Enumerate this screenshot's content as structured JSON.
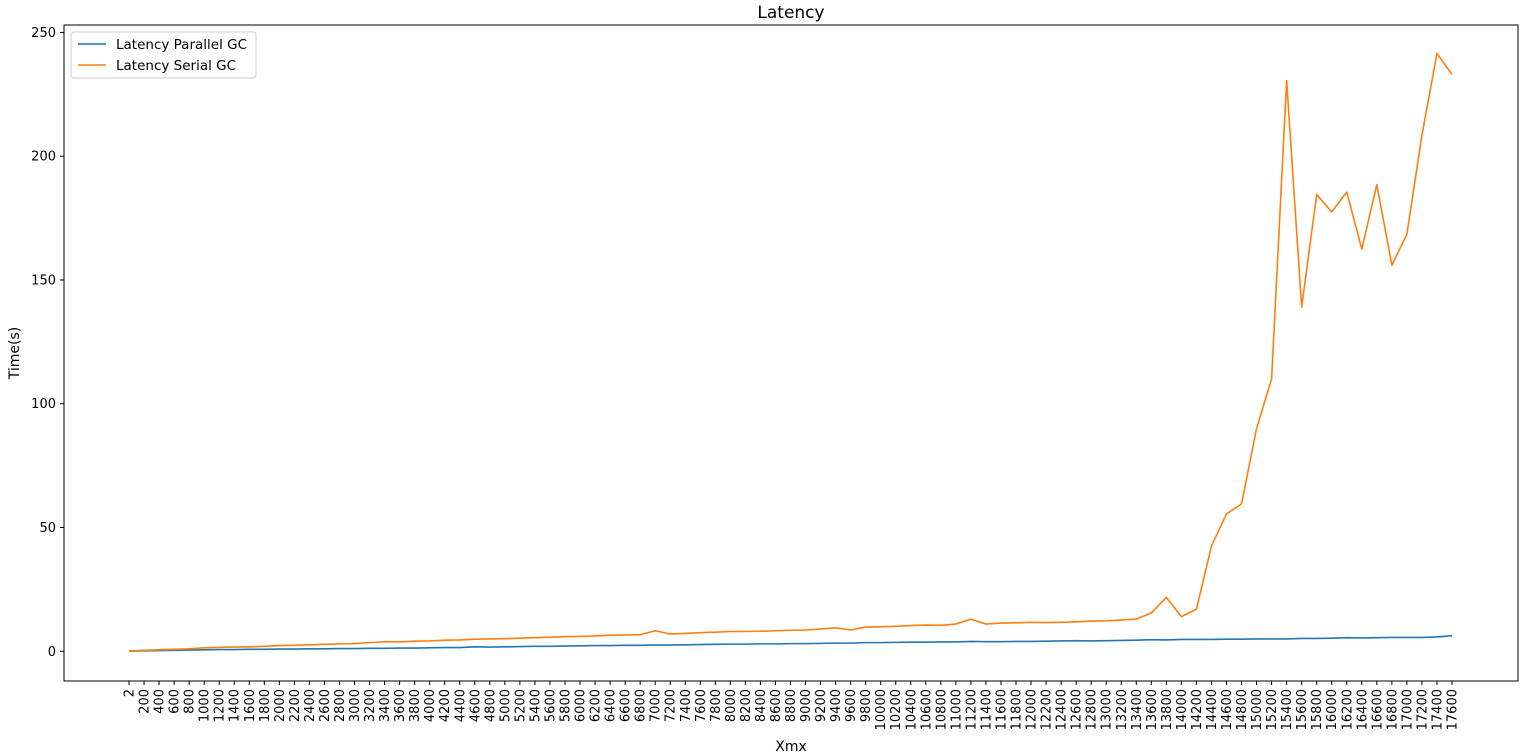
{
  "chart_data": {
    "type": "line",
    "title": "Latency",
    "xlabel": "Xmx",
    "ylabel": "Time(s)",
    "categories": [
      "2",
      "200",
      "400",
      "600",
      "800",
      "1000",
      "1200",
      "1400",
      "1600",
      "1800",
      "2000",
      "2200",
      "2400",
      "2600",
      "2800",
      "3000",
      "3200",
      "3400",
      "3600",
      "3800",
      "4000",
      "4200",
      "4400",
      "4600",
      "4800",
      "5000",
      "5200",
      "5400",
      "5600",
      "5800",
      "6000",
      "6200",
      "6400",
      "6600",
      "6800",
      "7000",
      "7200",
      "7400",
      "7600",
      "7800",
      "8000",
      "8200",
      "8400",
      "8600",
      "8800",
      "9000",
      "9200",
      "9400",
      "9600",
      "9800",
      "10000",
      "10200",
      "10400",
      "10600",
      "10800",
      "11000",
      "11200",
      "11400",
      "11600",
      "11800",
      "12000",
      "12200",
      "12400",
      "12600",
      "12800",
      "13000",
      "13200",
      "13400",
      "13600",
      "13800",
      "14000",
      "14200",
      "14400",
      "14600",
      "14800",
      "15000",
      "15200",
      "15400",
      "15600",
      "15800",
      "16000",
      "16200",
      "16400",
      "16600",
      "16800",
      "17000",
      "17200",
      "17400",
      "17600"
    ],
    "ylim": [
      -12,
      253
    ],
    "yticks": [
      0,
      50,
      100,
      150,
      200,
      250
    ],
    "legend_position": "top-left",
    "grid": false,
    "series": [
      {
        "name": "Latency Parallel GC",
        "color": "#1f77b4",
        "values": [
          0.1,
          0.2,
          0.3,
          0.4,
          0.5,
          0.6,
          0.7,
          0.7,
          0.8,
          0.8,
          0.9,
          0.9,
          1.0,
          1.0,
          1.1,
          1.1,
          1.2,
          1.2,
          1.3,
          1.3,
          1.4,
          1.5,
          1.5,
          1.8,
          1.7,
          1.8,
          1.9,
          2.0,
          2.0,
          2.1,
          2.2,
          2.3,
          2.3,
          2.4,
          2.4,
          2.5,
          2.5,
          2.6,
          2.7,
          2.8,
          2.9,
          2.9,
          3.0,
          3.0,
          3.1,
          3.1,
          3.2,
          3.3,
          3.3,
          3.5,
          3.5,
          3.6,
          3.7,
          3.7,
          3.8,
          3.8,
          4.0,
          3.9,
          3.9,
          4.0,
          4.0,
          4.1,
          4.2,
          4.3,
          4.2,
          4.3,
          4.4,
          4.5,
          4.7,
          4.6,
          4.8,
          4.8,
          4.8,
          4.9,
          4.9,
          5.0,
          5.0,
          5.0,
          5.2,
          5.2,
          5.3,
          5.5,
          5.4,
          5.5,
          5.6,
          5.6,
          5.6,
          5.8,
          6.3
        ]
      },
      {
        "name": "Latency Serial GC",
        "color": "#ff7f0e",
        "values": [
          0.1,
          0.4,
          0.6,
          0.8,
          1.0,
          1.4,
          1.6,
          1.7,
          1.8,
          2.0,
          2.3,
          2.4,
          2.6,
          2.8,
          3.0,
          3.1,
          3.5,
          3.9,
          3.8,
          4.1,
          4.2,
          4.5,
          4.6,
          4.9,
          5.0,
          5.1,
          5.3,
          5.5,
          5.7,
          5.9,
          6.0,
          6.2,
          6.5,
          6.6,
          6.7,
          8.3,
          7.0,
          7.2,
          7.5,
          7.7,
          8.0,
          8.0,
          8.1,
          8.3,
          8.5,
          8.6,
          9.0,
          9.5,
          8.6,
          9.8,
          9.9,
          10.1,
          10.4,
          10.6,
          10.5,
          11.0,
          13.0,
          11.0,
          11.4,
          11.5,
          11.7,
          11.6,
          11.7,
          11.9,
          12.2,
          12.3,
          12.6,
          13.0,
          15.5,
          21.8,
          14.0,
          17.0,
          42.5,
          55.5,
          59.5,
          90.0,
          110.0,
          230.5,
          139.0,
          184.5,
          177.5,
          185.5,
          162.5,
          188.5,
          156.0,
          168.5,
          208.5,
          241.5,
          233.0
        ]
      }
    ]
  }
}
